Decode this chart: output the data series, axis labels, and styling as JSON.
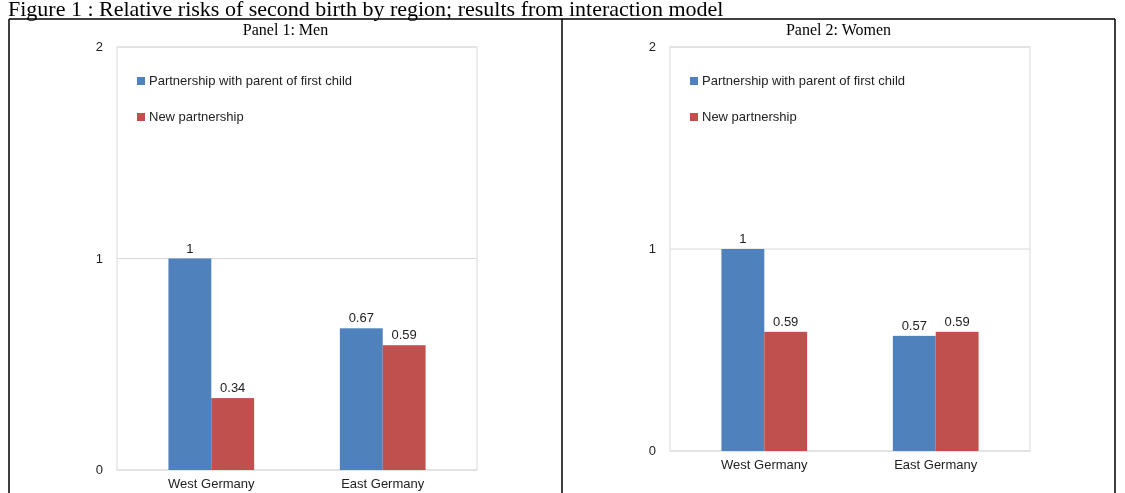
{
  "chart_data": [
    {
      "type": "bar",
      "title": "Panel 1: Men",
      "annotations": [
        "Figure 1 : Relative risks of second birth by region; results from interaction model"
      ],
      "categories": [
        "West Germany",
        "East Germany"
      ],
      "series": [
        {
          "name": "Partnership with parent of first child",
          "color": "#4f81bd",
          "values": [
            1,
            0.67
          ]
        },
        {
          "name": "New partnership",
          "color": "#c0504d",
          "values": [
            0.34,
            0.59
          ]
        }
      ],
      "ylim": [
        0,
        2
      ],
      "yticks": [
        0,
        1,
        2
      ],
      "grid": "y",
      "legend": "top left",
      "data_labels": true
    },
    {
      "type": "bar",
      "title": "Panel 2: Women",
      "categories": [
        "West Germany",
        "East Germany"
      ],
      "series": [
        {
          "name": "Partnership with parent of first child",
          "color": "#4f81bd",
          "values": [
            1,
            0.57
          ]
        },
        {
          "name": "New partnership",
          "color": "#c0504d",
          "values": [
            0.59,
            0.59
          ]
        }
      ],
      "ylim": [
        0,
        2
      ],
      "yticks": [
        0,
        1,
        2
      ],
      "grid": "y",
      "legend": "top left",
      "data_labels": true
    }
  ]
}
